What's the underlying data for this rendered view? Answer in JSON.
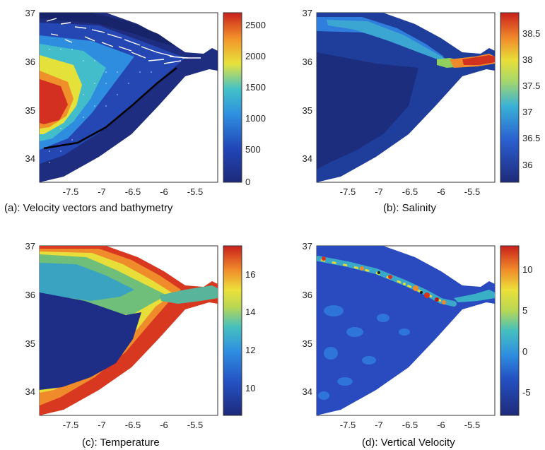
{
  "chart_data": [
    {
      "type": "heatmap",
      "panel": "a",
      "caption": "(a): Velocity vectors and bathymetry",
      "xlabel": "",
      "ylabel": "",
      "x_ticks": [
        "-7.5",
        "-7",
        "-6.5",
        "-6",
        "-5.5"
      ],
      "y_ticks": [
        "37",
        "36",
        "35",
        "34"
      ],
      "xlim": [
        -8,
        -5.2
      ],
      "ylim": [
        33.5,
        37
      ],
      "colorbar": {
        "min": 0,
        "max": 2700,
        "ticks": [
          "2500",
          "2000",
          "1500",
          "1000",
          "500",
          "0"
        ]
      },
      "overlay": "velocity vectors",
      "colors": {
        "deep": "#1c2f84",
        "mid": "#2a6fd0",
        "cyan": "#3fb7d0",
        "yellow": "#e9e23a",
        "orange": "#f08a2a",
        "red": "#d83223"
      }
    },
    {
      "type": "heatmap",
      "panel": "b",
      "caption": "(b): Salinity",
      "xlabel": "",
      "ylabel": "",
      "x_ticks": [
        "-7.5",
        "-7",
        "-6.5",
        "-6",
        "-5.5"
      ],
      "y_ticks": [
        "37",
        "36",
        "35",
        "34"
      ],
      "xlim": [
        -8,
        -5.2
      ],
      "ylim": [
        33.5,
        37
      ],
      "colorbar": {
        "min": 35.7,
        "max": 38.9,
        "ticks": [
          "38.5",
          "38",
          "37.5",
          "37",
          "36.5",
          "36"
        ]
      }
    },
    {
      "type": "heatmap",
      "panel": "c",
      "caption": "(c): Temperature",
      "xlabel": "",
      "ylabel": "",
      "x_ticks": [
        "-7.5",
        "-7",
        "-6.5",
        "-6",
        "-5.5"
      ],
      "y_ticks": [
        "37",
        "36",
        "35",
        "34"
      ],
      "xlim": [
        -8,
        -5.2
      ],
      "ylim": [
        33.5,
        37
      ],
      "colorbar": {
        "min": 8.5,
        "max": 17.5,
        "ticks": [
          "16",
          "14",
          "12",
          "10"
        ]
      }
    },
    {
      "type": "heatmap",
      "panel": "d",
      "caption": "(d): Vertical Velocity",
      "xlabel": "",
      "ylabel": "",
      "x_ticks": [
        "-7.5",
        "-7",
        "-6.5",
        "-6",
        "-5.5"
      ],
      "y_ticks": [
        "37",
        "36",
        "35",
        "34"
      ],
      "xlim": [
        -8,
        -5.2
      ],
      "ylim": [
        33.5,
        37
      ],
      "colorbar": {
        "min": -7,
        "max": 13.5,
        "ticks": [
          "10",
          "5",
          "0",
          "-5"
        ]
      }
    }
  ]
}
